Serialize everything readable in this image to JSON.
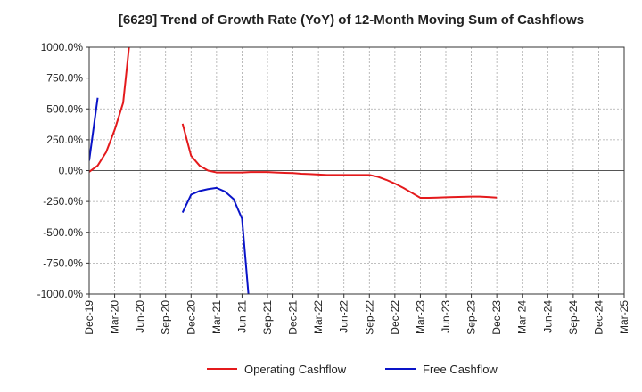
{
  "chart_data": {
    "type": "line",
    "title": "[6629]  Trend of Growth Rate (YoY) of 12-Month Moving Sum of Cashflows",
    "xlabel": "",
    "ylabel": "",
    "ylim": [
      -1000,
      1000
    ],
    "yticks": [
      1000,
      750,
      500,
      250,
      0,
      -250,
      -500,
      -750,
      -1000
    ],
    "ytick_labels": [
      "1000.0%",
      "750.0%",
      "500.0%",
      "250.0%",
      "0.0%",
      "-250.0%",
      "-500.0%",
      "-750.0%",
      "-1000.0%"
    ],
    "x_categories": [
      "Dec-19",
      "Jan-20",
      "Feb-20",
      "Mar-20",
      "Apr-20",
      "May-20",
      "Jun-20",
      "Jul-20",
      "Aug-20",
      "Sep-20",
      "Oct-20",
      "Nov-20",
      "Dec-20",
      "Jan-21",
      "Feb-21",
      "Mar-21",
      "Apr-21",
      "May-21",
      "Jun-21",
      "Jul-21",
      "Aug-21",
      "Sep-21",
      "Oct-21",
      "Nov-21",
      "Dec-21",
      "Jan-22",
      "Feb-22",
      "Mar-22",
      "Apr-22",
      "May-22",
      "Jun-22",
      "Jul-22",
      "Aug-22",
      "Sep-22",
      "Oct-22",
      "Nov-22",
      "Dec-22",
      "Jan-23",
      "Feb-23",
      "Mar-23",
      "Apr-23",
      "May-23",
      "Jun-23",
      "Jul-23",
      "Aug-23",
      "Sep-23",
      "Oct-23",
      "Nov-23",
      "Dec-23",
      "Jan-24",
      "Feb-24",
      "Mar-24",
      "Apr-24",
      "May-24",
      "Jun-24",
      "Jul-24",
      "Aug-24",
      "Sep-24",
      "Oct-24",
      "Nov-24",
      "Dec-24",
      "Jan-25",
      "Feb-25",
      "Mar-25"
    ],
    "xtick_labels": [
      "Dec-19",
      "Mar-20",
      "Jun-20",
      "Sep-20",
      "Dec-20",
      "Mar-21",
      "Jun-21",
      "Sep-21",
      "Dec-21",
      "Mar-22",
      "Jun-22",
      "Sep-22",
      "Dec-22",
      "Mar-23",
      "Jun-23",
      "Sep-23",
      "Dec-23",
      "Mar-24",
      "Jun-24",
      "Sep-24",
      "Dec-24",
      "Mar-25"
    ],
    "grid": true,
    "legend_position": "bottom",
    "series": [
      {
        "name": "Operating Cashflow",
        "color": "#e41a1c",
        "values": [
          -10,
          40,
          150,
          330,
          550,
          1200,
          null,
          null,
          null,
          null,
          null,
          380,
          120,
          40,
          0,
          -15,
          -15,
          -15,
          -15,
          -12,
          -12,
          -12,
          -15,
          -18,
          -20,
          -25,
          -28,
          -32,
          -35,
          -35,
          -35,
          -35,
          -35,
          -35,
          -50,
          -75,
          -105,
          -140,
          -180,
          -220,
          -220,
          -218,
          -216,
          -214,
          -212,
          -210,
          -210,
          -214,
          -218
        ]
      },
      {
        "name": "Free Cashflow",
        "color": "#0a14c8",
        "values": [
          80,
          590,
          null,
          null,
          null,
          null,
          null,
          null,
          null,
          null,
          null,
          -340,
          -195,
          -165,
          -150,
          -140,
          -170,
          -230,
          -390,
          -1200
        ]
      }
    ]
  }
}
